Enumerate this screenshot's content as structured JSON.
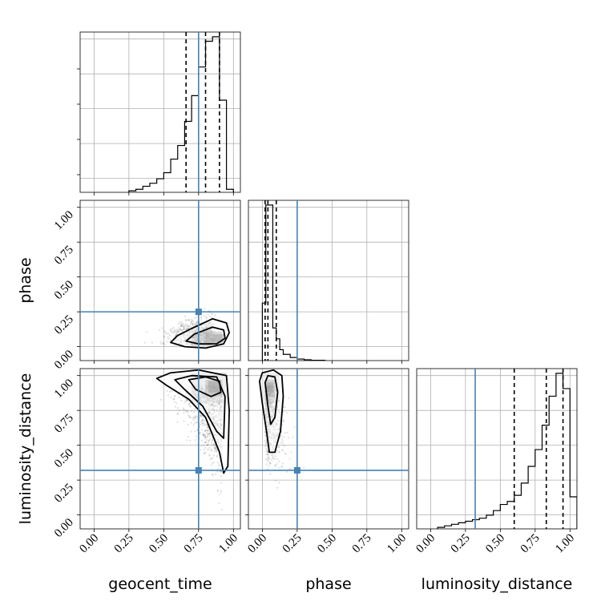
{
  "chart_data": {
    "type": "corner",
    "parameters": [
      "geocent_time",
      "phase",
      "luminosity_distance"
    ],
    "truths": {
      "geocent_time": 0.75,
      "phase": 0.25,
      "luminosity_distance": 0.32
    },
    "truth_color": "#4682b4",
    "axis_range": [
      -0.1,
      1.05
    ],
    "ticks": [
      0.0,
      0.25,
      0.5,
      0.75,
      1.0
    ],
    "tick_labels": [
      "0.00",
      "0.25",
      "0.50",
      "0.75",
      "1.00"
    ],
    "grid": true,
    "histograms": {
      "geocent_time": {
        "quantiles": [
          0.66,
          0.8,
          0.9
        ],
        "bins": [
          [
            0.25,
            0.3,
            0.01
          ],
          [
            0.3,
            0.35,
            0.02
          ],
          [
            0.35,
            0.4,
            0.04
          ],
          [
            0.4,
            0.45,
            0.06
          ],
          [
            0.45,
            0.5,
            0.09
          ],
          [
            0.5,
            0.55,
            0.13
          ],
          [
            0.55,
            0.6,
            0.22
          ],
          [
            0.6,
            0.65,
            0.31
          ],
          [
            0.65,
            0.7,
            0.47
          ],
          [
            0.7,
            0.75,
            0.64
          ],
          [
            0.75,
            0.8,
            0.83
          ],
          [
            0.8,
            0.85,
            1.0
          ],
          [
            0.85,
            0.9,
            1.03
          ],
          [
            0.9,
            0.95,
            0.61
          ],
          [
            0.95,
            1.0,
            0.02
          ]
        ]
      },
      "phase": {
        "quantiles": [
          0.02,
          0.04,
          0.1
        ],
        "bins": [
          [
            0.0,
            0.025,
            0.37
          ],
          [
            0.025,
            0.05,
            1.0
          ],
          [
            0.05,
            0.075,
            1.0
          ],
          [
            0.075,
            0.1,
            0.21
          ],
          [
            0.1,
            0.125,
            0.14
          ],
          [
            0.125,
            0.15,
            0.07
          ],
          [
            0.15,
            0.2,
            0.04
          ],
          [
            0.2,
            0.25,
            0.02
          ],
          [
            0.25,
            0.3,
            0.01
          ],
          [
            0.3,
            0.35,
            0.005
          ],
          [
            0.35,
            0.45,
            0.002
          ]
        ]
      },
      "luminosity_distance": {
        "quantiles": [
          0.6,
          0.83,
          0.95
        ],
        "bins": [
          [
            0.05,
            0.1,
            0.01
          ],
          [
            0.1,
            0.15,
            0.02
          ],
          [
            0.15,
            0.2,
            0.03
          ],
          [
            0.2,
            0.25,
            0.04
          ],
          [
            0.25,
            0.3,
            0.05
          ],
          [
            0.3,
            0.35,
            0.06
          ],
          [
            0.35,
            0.4,
            0.07
          ],
          [
            0.4,
            0.45,
            0.09
          ],
          [
            0.45,
            0.5,
            0.12
          ],
          [
            0.5,
            0.55,
            0.16
          ],
          [
            0.55,
            0.6,
            0.18
          ],
          [
            0.6,
            0.65,
            0.22
          ],
          [
            0.65,
            0.7,
            0.3
          ],
          [
            0.7,
            0.75,
            0.41
          ],
          [
            0.75,
            0.8,
            0.52
          ],
          [
            0.8,
            0.85,
            0.68
          ],
          [
            0.85,
            0.9,
            0.87
          ],
          [
            0.9,
            0.95,
            1.02
          ],
          [
            0.95,
            1.0,
            0.92
          ],
          [
            1.0,
            1.05,
            0.21
          ]
        ]
      }
    },
    "joint_2d": {
      "geocent_time_vs_phase": {
        "centre": [
          0.85,
          0.06
        ],
        "contours": [
          [
            [
              0.55,
              0.03
            ],
            [
              0.6,
              0.08
            ],
            [
              0.7,
              0.13
            ],
            [
              0.85,
              0.2
            ],
            [
              0.95,
              0.17
            ],
            [
              0.97,
              0.1
            ],
            [
              0.93,
              0.02
            ],
            [
              0.8,
              -0.01
            ],
            [
              0.65,
              0.0
            ]
          ],
          [
            [
              0.66,
              0.04
            ],
            [
              0.72,
              0.09
            ],
            [
              0.85,
              0.14
            ],
            [
              0.93,
              0.12
            ],
            [
              0.94,
              0.06
            ],
            [
              0.88,
              0.02
            ],
            [
              0.75,
              0.02
            ]
          ]
        ],
        "shading": [
          [
            0.7,
            0.0,
            0.15,
            0.12,
            0.35
          ],
          [
            0.8,
            0.02,
            0.12,
            0.09,
            0.6
          ],
          [
            0.85,
            0.03,
            0.08,
            0.06,
            0.9
          ]
        ]
      },
      "geocent_time_vs_luminosity_distance": {
        "centre": [
          0.85,
          0.93
        ],
        "contours": [
          [
            [
              0.45,
              0.98
            ],
            [
              0.55,
              1.02
            ],
            [
              0.75,
              1.04
            ],
            [
              0.95,
              1.0
            ],
            [
              0.97,
              0.75
            ],
            [
              0.96,
              0.35
            ],
            [
              0.93,
              0.3
            ],
            [
              0.9,
              0.45
            ],
            [
              0.8,
              0.7
            ],
            [
              0.68,
              0.83
            ],
            [
              0.52,
              0.93
            ]
          ],
          [
            [
              0.58,
              0.97
            ],
            [
              0.7,
              1.0
            ],
            [
              0.88,
              0.99
            ],
            [
              0.94,
              0.85
            ],
            [
              0.93,
              0.55
            ],
            [
              0.88,
              0.6
            ],
            [
              0.78,
              0.78
            ],
            [
              0.65,
              0.9
            ]
          ],
          [
            [
              0.68,
              0.97
            ],
            [
              0.8,
              0.99
            ],
            [
              0.9,
              0.96
            ],
            [
              0.91,
              0.88
            ],
            [
              0.84,
              0.85
            ],
            [
              0.73,
              0.9
            ]
          ]
        ],
        "shading": [
          [
            0.7,
            0.8,
            0.25,
            0.22,
            0.3
          ],
          [
            0.8,
            0.85,
            0.12,
            0.12,
            0.6
          ],
          [
            0.82,
            0.88,
            0.08,
            0.08,
            0.9
          ]
        ]
      },
      "phase_vs_luminosity_distance": {
        "centre": [
          0.05,
          0.93
        ],
        "contours": [
          [
            [
              -0.02,
              0.96
            ],
            [
              0.0,
              1.02
            ],
            [
              0.08,
              1.04
            ],
            [
              0.14,
              1.0
            ],
            [
              0.15,
              0.85
            ],
            [
              0.13,
              0.6
            ],
            [
              0.09,
              0.45
            ],
            [
              0.05,
              0.45
            ],
            [
              0.03,
              0.6
            ],
            [
              0.0,
              0.8
            ]
          ],
          [
            [
              0.02,
              0.95
            ],
            [
              0.04,
              1.0
            ],
            [
              0.09,
              0.99
            ],
            [
              0.11,
              0.88
            ],
            [
              0.09,
              0.7
            ],
            [
              0.06,
              0.65
            ],
            [
              0.04,
              0.78
            ]
          ]
        ],
        "shading": [
          [
            0.0,
            0.8,
            0.12,
            0.22,
            0.3
          ],
          [
            0.02,
            0.85,
            0.07,
            0.12,
            0.6
          ],
          [
            0.03,
            0.88,
            0.05,
            0.07,
            0.9
          ]
        ]
      }
    }
  }
}
